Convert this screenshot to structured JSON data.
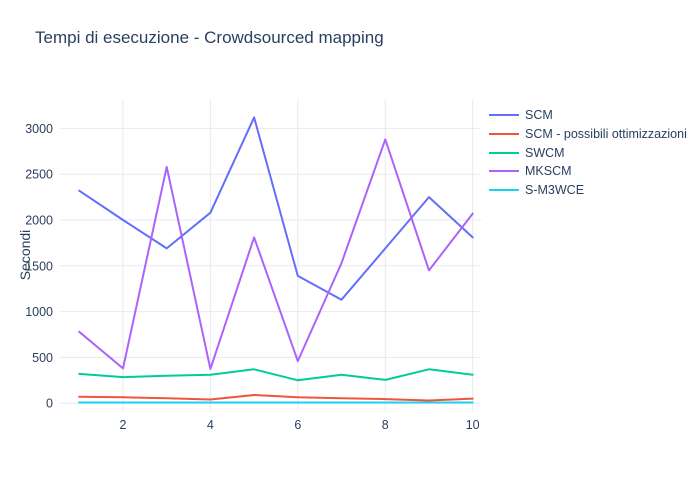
{
  "title": "Tempi di esecuzione - Crowdsourced mapping",
  "colors": {
    "text": "#2a3f5f",
    "grid": "#e5e9f2",
    "background": "#ffffff"
  },
  "chart_data": {
    "type": "line",
    "title": "Tempi di esecuzione - Crowdsourced mapping",
    "xlabel": "",
    "ylabel": "Secondi",
    "x": [
      1,
      2,
      3,
      4,
      5,
      6,
      7,
      8,
      9,
      10
    ],
    "series": [
      {
        "name": "SCM",
        "color": "#636efa",
        "values": [
          2320,
          2000,
          1690,
          2080,
          3120,
          1390,
          1130,
          1690,
          2250,
          1810
        ]
      },
      {
        "name": "SCM - possibili ottimizzazioni",
        "color": "#ef553b",
        "values": [
          70,
          65,
          55,
          40,
          90,
          65,
          55,
          45,
          30,
          50
        ]
      },
      {
        "name": "SWCM",
        "color": "#00cc96",
        "values": [
          320,
          285,
          300,
          310,
          370,
          250,
          310,
          255,
          370,
          310
        ]
      },
      {
        "name": "MKSCM",
        "color": "#ab63fa",
        "values": [
          780,
          380,
          2580,
          375,
          1810,
          460,
          1530,
          2880,
          1450,
          2070
        ]
      },
      {
        "name": "S-M3WCE",
        "color": "#19d3f3",
        "values": [
          8,
          8,
          8,
          8,
          8,
          8,
          8,
          8,
          8,
          8
        ]
      }
    ],
    "xticks": [
      2,
      4,
      6,
      8,
      10
    ],
    "yticks": [
      0,
      500,
      1000,
      1500,
      2000,
      2500,
      3000
    ],
    "xlim": [
      0.56,
      10.19
    ],
    "ylim": [
      -85,
      3310
    ],
    "grid": true,
    "legend_position": "right"
  }
}
